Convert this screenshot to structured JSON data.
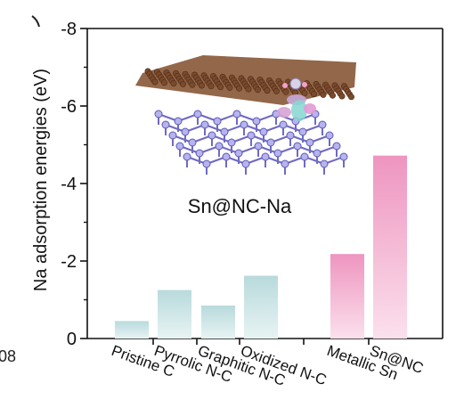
{
  "chart_data": {
    "type": "bar",
    "ylabel": "Na adsorption energies (eV)",
    "ylim": [
      0,
      -8
    ],
    "yticks": [
      "0",
      "-2",
      "-4",
      "-6",
      "-8"
    ],
    "ytick_values": [
      0,
      -2,
      -4,
      -6,
      -8
    ],
    "categories": [
      "Pristine C",
      "Pyrrolic N-C",
      "Graphitic N-C",
      "Oxidized N-C",
      "Metallic Sn",
      "Sn@NC"
    ],
    "values": [
      -0.45,
      -1.25,
      -0.85,
      -1.62,
      -2.18,
      -4.72
    ],
    "bar_colors": [
      "#bcdcde",
      "#bcdcde",
      "#bcdcde",
      "#bcdcde",
      "#f09bc2",
      "#f09bc2"
    ],
    "bar_fade_colors": [
      "#e6f2f2",
      "#e6f2f2",
      "#e6f2f2",
      "#e6f2f2",
      "#fbdceb",
      "#fbdceb"
    ],
    "inset_label": "Sn@NC-Na",
    "left_edge_fragment": "08",
    "grid": false
  }
}
